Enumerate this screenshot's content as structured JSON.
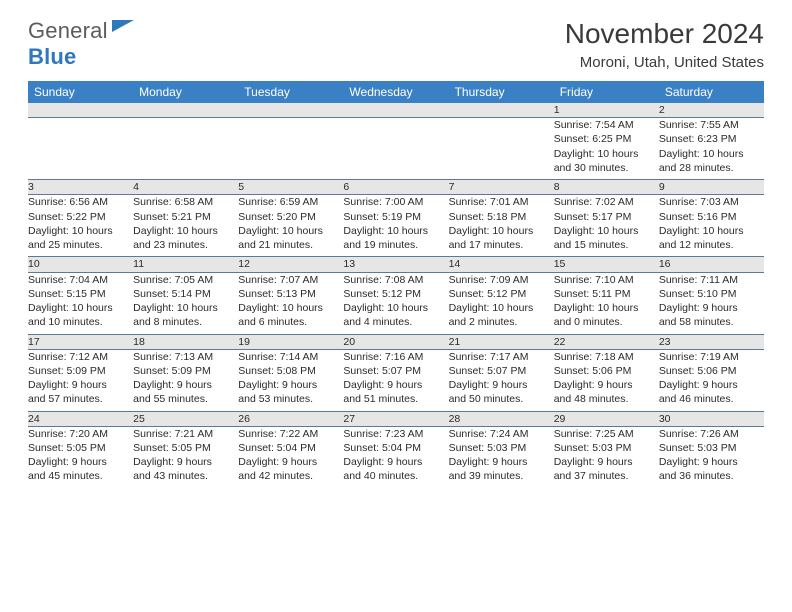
{
  "logo": {
    "part1": "General",
    "part2": "Blue"
  },
  "title": "November 2024",
  "location": "Moroni, Utah, United States",
  "colors": {
    "header_bg": "#3a80c4",
    "header_text": "#ffffff",
    "daynum_bg": "#e6e6e6",
    "rule": "#5a7a9a",
    "text": "#2b2b2b",
    "logo_blue": "#2f78bd"
  },
  "weekday_headers": [
    "Sunday",
    "Monday",
    "Tuesday",
    "Wednesday",
    "Thursday",
    "Friday",
    "Saturday"
  ],
  "weeks": [
    [
      null,
      null,
      null,
      null,
      null,
      {
        "d": "1",
        "sr": "Sunrise: 7:54 AM",
        "ss": "Sunset: 6:25 PM",
        "dl1": "Daylight: 10 hours",
        "dl2": "and 30 minutes."
      },
      {
        "d": "2",
        "sr": "Sunrise: 7:55 AM",
        "ss": "Sunset: 6:23 PM",
        "dl1": "Daylight: 10 hours",
        "dl2": "and 28 minutes."
      }
    ],
    [
      {
        "d": "3",
        "sr": "Sunrise: 6:56 AM",
        "ss": "Sunset: 5:22 PM",
        "dl1": "Daylight: 10 hours",
        "dl2": "and 25 minutes."
      },
      {
        "d": "4",
        "sr": "Sunrise: 6:58 AM",
        "ss": "Sunset: 5:21 PM",
        "dl1": "Daylight: 10 hours",
        "dl2": "and 23 minutes."
      },
      {
        "d": "5",
        "sr": "Sunrise: 6:59 AM",
        "ss": "Sunset: 5:20 PM",
        "dl1": "Daylight: 10 hours",
        "dl2": "and 21 minutes."
      },
      {
        "d": "6",
        "sr": "Sunrise: 7:00 AM",
        "ss": "Sunset: 5:19 PM",
        "dl1": "Daylight: 10 hours",
        "dl2": "and 19 minutes."
      },
      {
        "d": "7",
        "sr": "Sunrise: 7:01 AM",
        "ss": "Sunset: 5:18 PM",
        "dl1": "Daylight: 10 hours",
        "dl2": "and 17 minutes."
      },
      {
        "d": "8",
        "sr": "Sunrise: 7:02 AM",
        "ss": "Sunset: 5:17 PM",
        "dl1": "Daylight: 10 hours",
        "dl2": "and 15 minutes."
      },
      {
        "d": "9",
        "sr": "Sunrise: 7:03 AM",
        "ss": "Sunset: 5:16 PM",
        "dl1": "Daylight: 10 hours",
        "dl2": "and 12 minutes."
      }
    ],
    [
      {
        "d": "10",
        "sr": "Sunrise: 7:04 AM",
        "ss": "Sunset: 5:15 PM",
        "dl1": "Daylight: 10 hours",
        "dl2": "and 10 minutes."
      },
      {
        "d": "11",
        "sr": "Sunrise: 7:05 AM",
        "ss": "Sunset: 5:14 PM",
        "dl1": "Daylight: 10 hours",
        "dl2": "and 8 minutes."
      },
      {
        "d": "12",
        "sr": "Sunrise: 7:07 AM",
        "ss": "Sunset: 5:13 PM",
        "dl1": "Daylight: 10 hours",
        "dl2": "and 6 minutes."
      },
      {
        "d": "13",
        "sr": "Sunrise: 7:08 AM",
        "ss": "Sunset: 5:12 PM",
        "dl1": "Daylight: 10 hours",
        "dl2": "and 4 minutes."
      },
      {
        "d": "14",
        "sr": "Sunrise: 7:09 AM",
        "ss": "Sunset: 5:12 PM",
        "dl1": "Daylight: 10 hours",
        "dl2": "and 2 minutes."
      },
      {
        "d": "15",
        "sr": "Sunrise: 7:10 AM",
        "ss": "Sunset: 5:11 PM",
        "dl1": "Daylight: 10 hours",
        "dl2": "and 0 minutes."
      },
      {
        "d": "16",
        "sr": "Sunrise: 7:11 AM",
        "ss": "Sunset: 5:10 PM",
        "dl1": "Daylight: 9 hours",
        "dl2": "and 58 minutes."
      }
    ],
    [
      {
        "d": "17",
        "sr": "Sunrise: 7:12 AM",
        "ss": "Sunset: 5:09 PM",
        "dl1": "Daylight: 9 hours",
        "dl2": "and 57 minutes."
      },
      {
        "d": "18",
        "sr": "Sunrise: 7:13 AM",
        "ss": "Sunset: 5:09 PM",
        "dl1": "Daylight: 9 hours",
        "dl2": "and 55 minutes."
      },
      {
        "d": "19",
        "sr": "Sunrise: 7:14 AM",
        "ss": "Sunset: 5:08 PM",
        "dl1": "Daylight: 9 hours",
        "dl2": "and 53 minutes."
      },
      {
        "d": "20",
        "sr": "Sunrise: 7:16 AM",
        "ss": "Sunset: 5:07 PM",
        "dl1": "Daylight: 9 hours",
        "dl2": "and 51 minutes."
      },
      {
        "d": "21",
        "sr": "Sunrise: 7:17 AM",
        "ss": "Sunset: 5:07 PM",
        "dl1": "Daylight: 9 hours",
        "dl2": "and 50 minutes."
      },
      {
        "d": "22",
        "sr": "Sunrise: 7:18 AM",
        "ss": "Sunset: 5:06 PM",
        "dl1": "Daylight: 9 hours",
        "dl2": "and 48 minutes."
      },
      {
        "d": "23",
        "sr": "Sunrise: 7:19 AM",
        "ss": "Sunset: 5:06 PM",
        "dl1": "Daylight: 9 hours",
        "dl2": "and 46 minutes."
      }
    ],
    [
      {
        "d": "24",
        "sr": "Sunrise: 7:20 AM",
        "ss": "Sunset: 5:05 PM",
        "dl1": "Daylight: 9 hours",
        "dl2": "and 45 minutes."
      },
      {
        "d": "25",
        "sr": "Sunrise: 7:21 AM",
        "ss": "Sunset: 5:05 PM",
        "dl1": "Daylight: 9 hours",
        "dl2": "and 43 minutes."
      },
      {
        "d": "26",
        "sr": "Sunrise: 7:22 AM",
        "ss": "Sunset: 5:04 PM",
        "dl1": "Daylight: 9 hours",
        "dl2": "and 42 minutes."
      },
      {
        "d": "27",
        "sr": "Sunrise: 7:23 AM",
        "ss": "Sunset: 5:04 PM",
        "dl1": "Daylight: 9 hours",
        "dl2": "and 40 minutes."
      },
      {
        "d": "28",
        "sr": "Sunrise: 7:24 AM",
        "ss": "Sunset: 5:03 PM",
        "dl1": "Daylight: 9 hours",
        "dl2": "and 39 minutes."
      },
      {
        "d": "29",
        "sr": "Sunrise: 7:25 AM",
        "ss": "Sunset: 5:03 PM",
        "dl1": "Daylight: 9 hours",
        "dl2": "and 37 minutes."
      },
      {
        "d": "30",
        "sr": "Sunrise: 7:26 AM",
        "ss": "Sunset: 5:03 PM",
        "dl1": "Daylight: 9 hours",
        "dl2": "and 36 minutes."
      }
    ]
  ]
}
